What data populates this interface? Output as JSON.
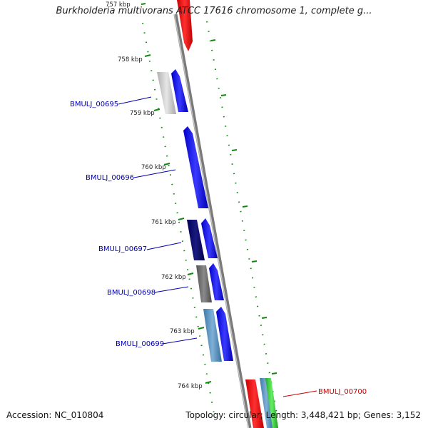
{
  "title": "Burkholderia multivorans ATCC 17616 chromosome 1, complete g...",
  "accession_text": "Accession: NC_010804",
  "summary_text": "Topology: circular; Length: 3,448,421 bp; Genes: 3,152",
  "ruler": {
    "tick_labels": [
      "757 kbp",
      "758 kbp",
      "759 kbp",
      "760 kbp",
      "761 kbp",
      "762 kbp",
      "763 kbp",
      "764 kbp"
    ]
  },
  "genes": [
    {
      "label": "BMULJ_00695",
      "label_color": "#0000aa"
    },
    {
      "label": "BMULJ_00696",
      "label_color": "#0000aa"
    },
    {
      "label": "BMULJ_00697",
      "label_color": "#0000aa"
    },
    {
      "label": "BMULJ_00698",
      "label_color": "#0000aa"
    },
    {
      "label": "BMULJ_00699",
      "label_color": "#0000aa"
    },
    {
      "label": "BMULJ_00700",
      "label_color": "#cc0000"
    }
  ],
  "colors": {
    "backbone": "#8a8a8a",
    "tick": "#118811",
    "forward_gene": "#0000ee",
    "reverse_gene": "#ee0000",
    "green_gene": "#33cc33"
  }
}
